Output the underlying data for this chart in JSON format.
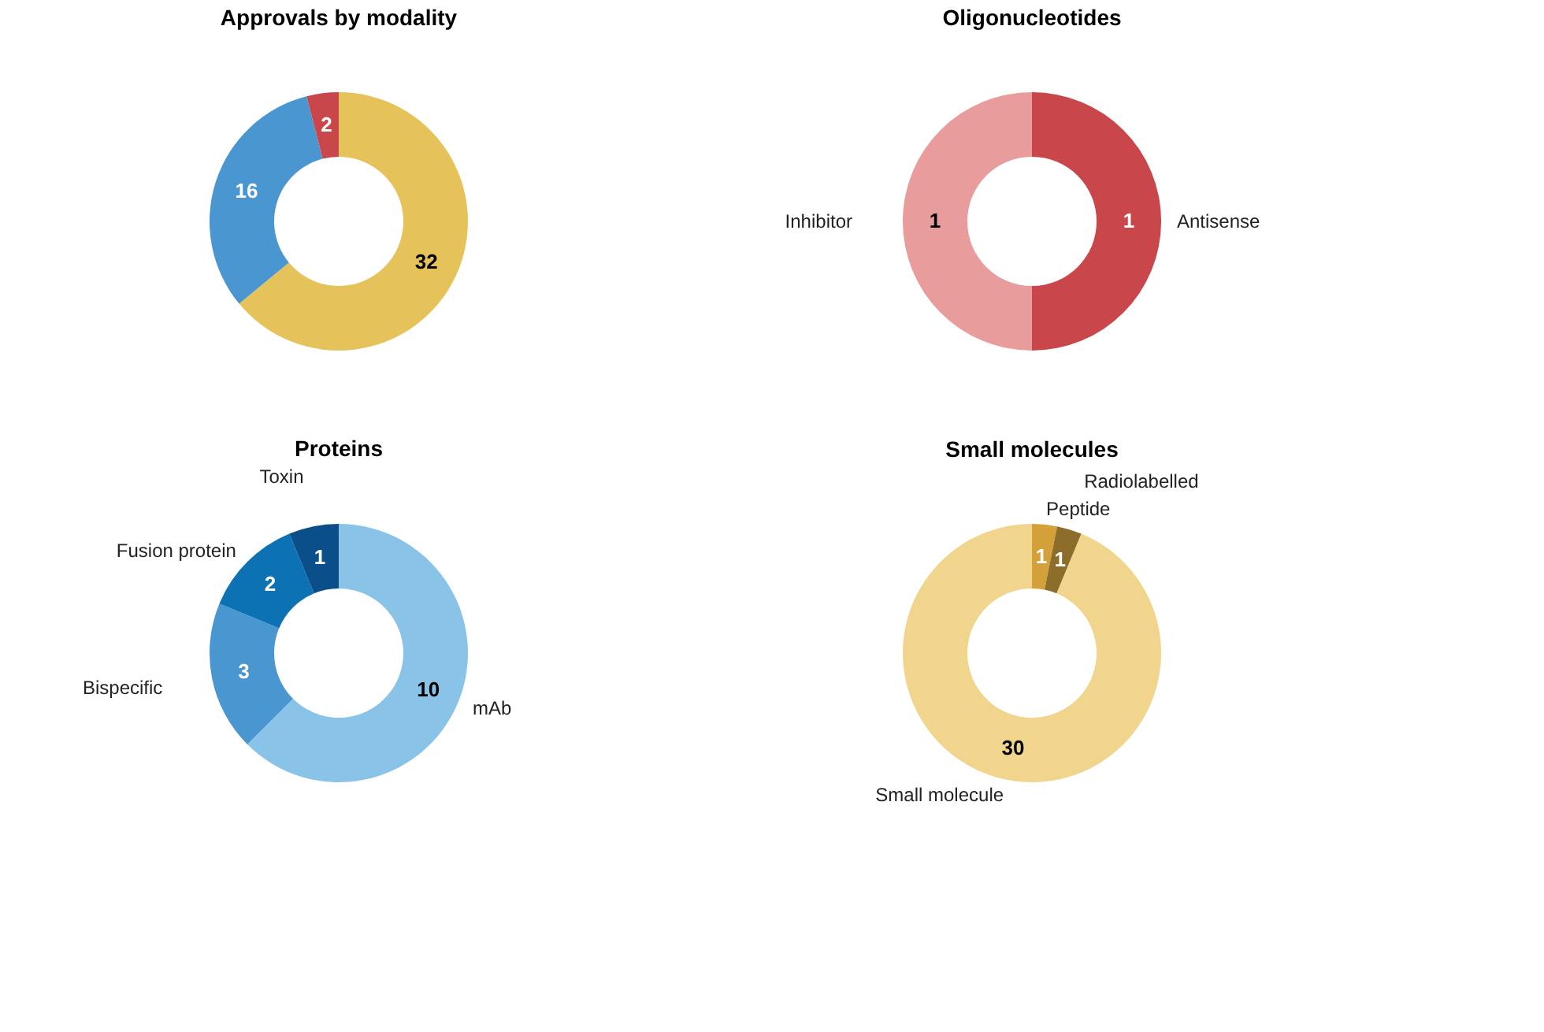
{
  "chart_data": [
    {
      "type": "donut",
      "title": "Approvals by modality",
      "categories": [
        null,
        null,
        null
      ],
      "values": [
        32,
        16,
        2
      ],
      "colors": [
        "#e6c35a",
        "#4a96d0",
        "#c9474a"
      ],
      "data_labels": true
    },
    {
      "type": "donut",
      "title": "Oligonucleotides",
      "categories": [
        "Antisense",
        "Inhibitor"
      ],
      "values": [
        1,
        1
      ],
      "colors": [
        "#c9474a",
        "#e99c9c"
      ],
      "data_labels": true
    },
    {
      "type": "donut",
      "title": "Proteins",
      "categories": [
        "mAb",
        "Bispecific",
        "Fusion protein",
        "Toxin"
      ],
      "values": [
        10,
        3,
        2,
        1
      ],
      "colors": [
        "#8ac3e8",
        "#4a96d0",
        "#0c72b3",
        "#0a4f8a"
      ],
      "data_labels": true
    },
    {
      "type": "donut",
      "title": "Small molecules",
      "categories": [
        "Peptide",
        "Radiolabelled",
        "Small molecule"
      ],
      "values": [
        1,
        1,
        30
      ],
      "colors": [
        "#d4a03a",
        "#8c6e2a",
        "#f1d58c"
      ],
      "data_labels": true
    }
  ]
}
